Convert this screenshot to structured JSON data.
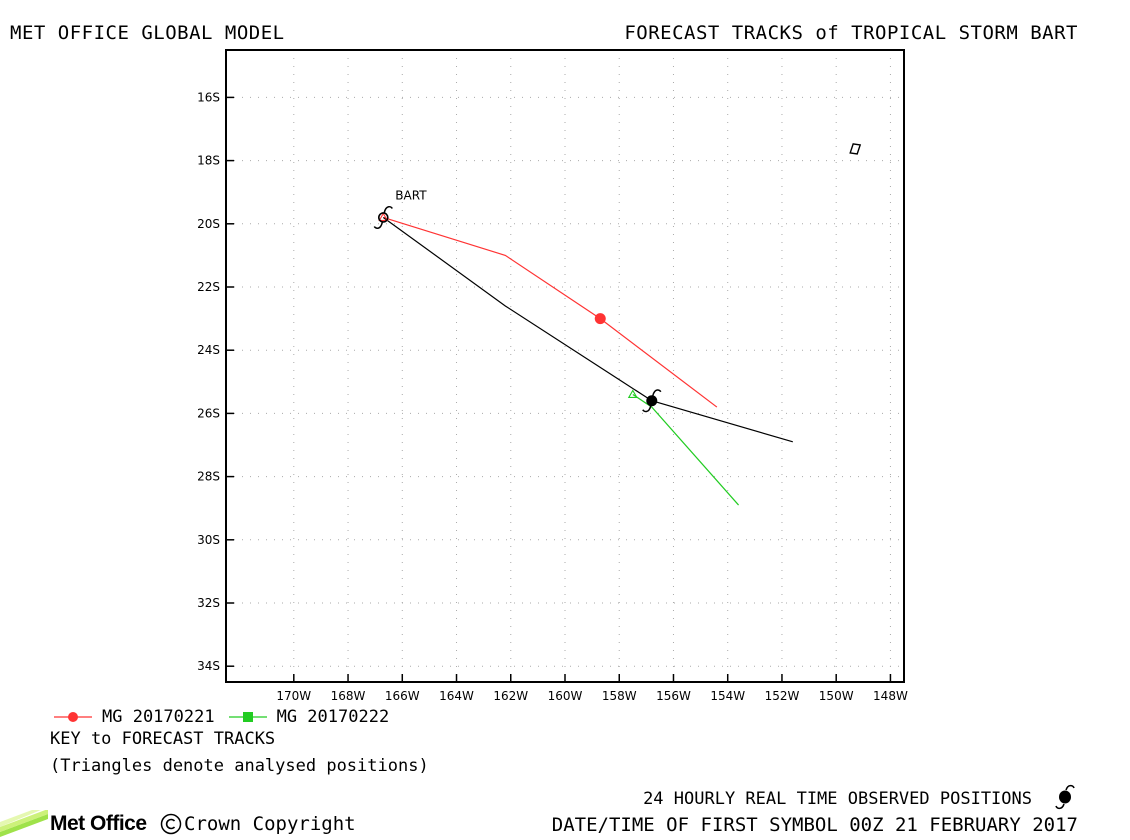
{
  "header": {
    "left_title": "MET OFFICE GLOBAL MODEL",
    "right_title": "FORECAST TRACKS of TROPICAL STORM BART"
  },
  "chart_data": {
    "type": "line",
    "title": "FORECAST TRACKS of TROPICAL STORM BART",
    "storm_label": "BART",
    "xlim": [
      -172.5,
      -147.5
    ],
    "ylim": [
      -34.5,
      -14.5
    ],
    "x_ticks": [
      -170,
      -168,
      -166,
      -164,
      -162,
      -160,
      -158,
      -156,
      -154,
      -152,
      -150,
      -148
    ],
    "x_tick_labels": [
      "170W",
      "168W",
      "166W",
      "164W",
      "162W",
      "160W",
      "158W",
      "156W",
      "154W",
      "152W",
      "150W",
      "148W"
    ],
    "y_ticks": [
      -16,
      -18,
      -20,
      -22,
      -24,
      -26,
      -28,
      -30,
      -32,
      -34
    ],
    "y_tick_labels": [
      "16S",
      "18S",
      "20S",
      "22S",
      "24S",
      "26S",
      "28S",
      "30S",
      "32S",
      "34S"
    ],
    "grid": true,
    "series": [
      {
        "name": "MG 20170221",
        "color": "#ff3333",
        "points": [
          [
            -166.7,
            -19.8
          ],
          [
            -162.2,
            -21.0
          ],
          [
            -158.7,
            -23.0
          ],
          [
            -154.4,
            -25.8
          ]
        ],
        "symbol_points": [
          [
            -158.7,
            -23.0
          ]
        ],
        "symbol": "circle"
      },
      {
        "name": "MG 20170222",
        "color": "#22cc22",
        "points": [
          [
            -157.5,
            -25.4
          ],
          [
            -156.8,
            -25.8
          ],
          [
            -153.6,
            -28.9
          ]
        ],
        "analysed_position": [
          -157.5,
          -25.4
        ],
        "symbol": "square"
      },
      {
        "name": "observed",
        "color": "#000000",
        "points": [
          [
            -166.7,
            -19.8
          ],
          [
            -162.2,
            -22.6
          ],
          [
            -156.8,
            -25.6
          ],
          [
            -151.6,
            -26.9
          ]
        ],
        "observed_positions": [
          [
            -166.7,
            -19.8
          ],
          [
            -156.8,
            -25.6
          ]
        ]
      }
    ],
    "analysed_position_red": [
      -166.7,
      -19.8
    ],
    "island": [
      -149.3,
      -17.6
    ]
  },
  "legend": {
    "item1": "MG 20170221",
    "item2": "MG 20170222",
    "key_title": "KEY to FORECAST TRACKS",
    "key_note": "(Triangles denote analysed positions)"
  },
  "footer": {
    "observed": "24 HOURLY REAL TIME OBSERVED POSITIONS",
    "datetime": "DATE/TIME OF FIRST SYMBOL 00Z 21 FEBRUARY 2017",
    "logo": "Met Office",
    "copyright": "Crown Copyright"
  }
}
